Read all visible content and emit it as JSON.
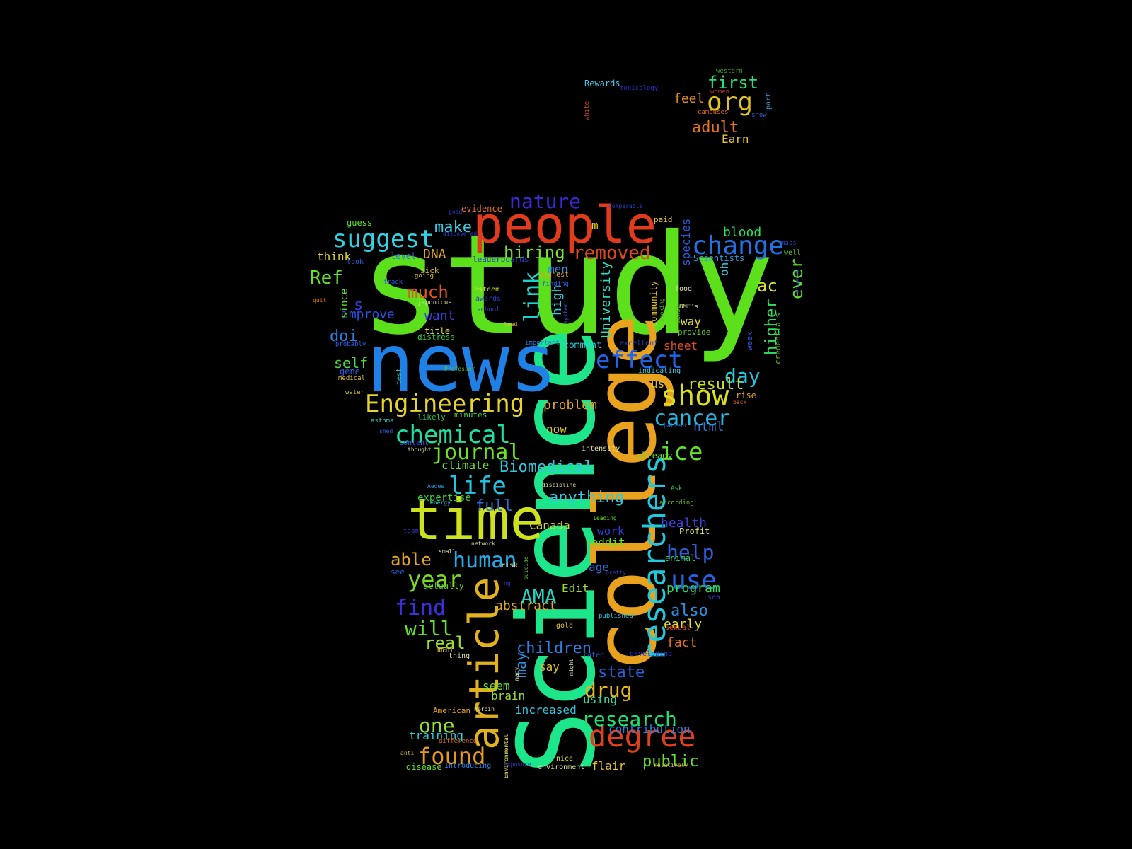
{
  "words": [
    {
      "text": "study",
      "color": "#5de01c",
      "rotated": false
    },
    {
      "text": "Science",
      "color": "#1de58a",
      "rotated": true
    },
    {
      "text": "college",
      "color": "#e8a21e",
      "rotated": true
    },
    {
      "text": "news",
      "color": "#1f80e6",
      "rotated": false
    },
    {
      "text": "people",
      "color": "#e23a1d",
      "rotated": false
    },
    {
      "text": "time",
      "color": "#cde11f",
      "rotated": false
    },
    {
      "text": "article",
      "color": "#e2b21e",
      "rotated": true
    },
    {
      "text": "researchers",
      "color": "#1fc9dd",
      "rotated": true
    },
    {
      "text": "degree",
      "color": "#e2401d",
      "rotated": false
    },
    {
      "text": "Engineering",
      "color": "#e8d32b",
      "rotated": false
    },
    {
      "text": "suggest",
      "color": "#30d2e4",
      "rotated": false
    },
    {
      "text": "change",
      "color": "#1f73e6",
      "rotated": false
    },
    {
      "text": "show",
      "color": "#d9e01e",
      "rotated": false
    },
    {
      "text": "effect",
      "color": "#2066e6",
      "rotated": false
    },
    {
      "text": "chemical",
      "color": "#1fe0a2",
      "rotated": false
    },
    {
      "text": "journal",
      "color": "#6ee21e",
      "rotated": false
    },
    {
      "text": "life",
      "color": "#22c5e4",
      "rotated": false
    },
    {
      "text": "found",
      "color": "#e8981e",
      "rotated": false
    },
    {
      "text": "research",
      "color": "#1fe070",
      "rotated": false
    },
    {
      "text": "year",
      "color": "#7ad922",
      "rotated": false
    },
    {
      "text": "human",
      "color": "#28a9e8",
      "rotated": false
    },
    {
      "text": "use",
      "color": "#2563e6",
      "rotated": false
    },
    {
      "text": "cancer",
      "color": "#22b8e0",
      "rotated": false
    },
    {
      "text": "nature",
      "color": "#3a28d9",
      "rotated": false
    },
    {
      "text": "org",
      "color": "#e2c21e",
      "rotated": false
    },
    {
      "text": "first",
      "color": "#22e07a",
      "rotated": false
    },
    {
      "text": "adult",
      "color": "#e8741e",
      "rotated": false
    },
    {
      "text": "feel",
      "color": "#e0882a",
      "rotated": false
    },
    {
      "text": "Earn",
      "color": "#e6c43a",
      "rotated": false
    },
    {
      "text": "Rewards",
      "color": "#48c8e8",
      "rotated": false
    },
    {
      "text": "toxicology",
      "color": "#2a2cd0",
      "rotated": false
    },
    {
      "text": "western",
      "color": "#3aa82a",
      "rotated": false
    },
    {
      "text": "women",
      "color": "#c82a2a",
      "rotated": false
    },
    {
      "text": "campuses",
      "color": "#e86a2a",
      "rotated": false
    },
    {
      "text": "part",
      "color": "#3a90d0",
      "rotated": true
    },
    {
      "text": "snow",
      "color": "#2a6ad0",
      "rotated": false
    },
    {
      "text": "white",
      "color": "#d0402a",
      "rotated": true
    },
    {
      "text": "removed",
      "color": "#e2481d",
      "rotated": false
    },
    {
      "text": "hiring",
      "color": "#7ce030",
      "rotated": false
    },
    {
      "text": "make",
      "color": "#40c8e0",
      "rotated": false
    },
    {
      "text": "DNA",
      "color": "#e8a81e",
      "rotated": false
    },
    {
      "text": "Ref",
      "color": "#62e02a",
      "rotated": false
    },
    {
      "text": "much",
      "color": "#e2561d",
      "rotated": false
    },
    {
      "text": "link",
      "color": "#1fd0c8",
      "rotated": true
    },
    {
      "text": "doi",
      "color": "#2a80e6",
      "rotated": false
    },
    {
      "text": "want",
      "color": "#3a40e0",
      "rotated": false
    },
    {
      "text": "improve",
      "color": "#2a50e0",
      "rotated": false
    },
    {
      "text": "self",
      "color": "#50d840",
      "rotated": false
    },
    {
      "text": "blood",
      "color": "#2ae060",
      "rotated": false
    },
    {
      "text": "day",
      "color": "#22c8e0",
      "rotated": false
    },
    {
      "text": "result",
      "color": "#c8e022",
      "rotated": false
    },
    {
      "text": "ice",
      "color": "#62e02a",
      "rotated": false
    },
    {
      "text": "html",
      "color": "#2a80e0",
      "rotated": false
    },
    {
      "text": "higher",
      "color": "#2ae060",
      "rotated": true
    },
    {
      "text": "ever",
      "color": "#62e02a",
      "rotated": true
    },
    {
      "text": "ac",
      "color": "#d8e030",
      "rotated": false
    },
    {
      "text": "University",
      "color": "#2ae0c0",
      "rotated": true
    },
    {
      "text": "high",
      "color": "#2ad0e0",
      "rotated": true
    },
    {
      "text": "species",
      "color": "#2a60e0",
      "rotated": true
    },
    {
      "text": "Biomedical",
      "color": "#30c8e0",
      "rotated": false
    },
    {
      "text": "anything",
      "color": "#30c8e0",
      "rotated": false
    },
    {
      "text": "full",
      "color": "#2a70e0",
      "rotated": false
    },
    {
      "text": "AMA",
      "color": "#2ad0c0",
      "rotated": false
    },
    {
      "text": "find",
      "color": "#3a30e0",
      "rotated": false
    },
    {
      "text": "will",
      "color": "#62e02a",
      "rotated": false
    },
    {
      "text": "real",
      "color": "#9ae030",
      "rotated": false
    },
    {
      "text": "able",
      "color": "#e8a81e",
      "rotated": false
    },
    {
      "text": "children",
      "color": "#2a80e6",
      "rotated": false
    },
    {
      "text": "state",
      "color": "#2a60e0",
      "rotated": false
    },
    {
      "text": "drug",
      "color": "#e8b81e",
      "rotated": false
    },
    {
      "text": "help",
      "color": "#2a60e0",
      "rotated": false
    },
    {
      "text": "health",
      "color": "#3a40e0",
      "rotated": false
    },
    {
      "text": "program",
      "color": "#2ae060",
      "rotated": false
    },
    {
      "text": "also",
      "color": "#2a90e0",
      "rotated": false
    },
    {
      "text": "early",
      "color": "#e0e030",
      "rotated": false
    },
    {
      "text": "fact",
      "color": "#e8701e",
      "rotated": false
    },
    {
      "text": "one",
      "color": "#9ae030",
      "rotated": false
    },
    {
      "text": "public",
      "color": "#62e02a",
      "rotated": false
    },
    {
      "text": "contribution",
      "color": "#2a80e0",
      "rotated": false
    },
    {
      "text": "problem",
      "color": "#e0a82a",
      "rotated": false
    },
    {
      "text": "now",
      "color": "#d8c030",
      "rotated": false
    },
    {
      "text": "climate",
      "color": "#62e02a",
      "rotated": false
    },
    {
      "text": "Canada",
      "color": "#d8d830",
      "rotated": false
    },
    {
      "text": "reddit",
      "color": "#62e02a",
      "rotated": false
    },
    {
      "text": "work",
      "color": "#2a40e0",
      "rotated": false
    },
    {
      "text": "age",
      "color": "#2a70e0",
      "rotated": false
    },
    {
      "text": "Edit",
      "color": "#9ae030",
      "rotated": false
    },
    {
      "text": "abstract",
      "color": "#e0a82a",
      "rotated": false
    },
    {
      "text": "may",
      "color": "#2a90e0",
      "rotated": true
    },
    {
      "text": "seem",
      "color": "#62e02a",
      "rotated": false
    },
    {
      "text": "brain",
      "color": "#9ae030",
      "rotated": false
    },
    {
      "text": "say",
      "color": "#e0c030",
      "rotated": false
    },
    {
      "text": "using",
      "color": "#2ae0a0",
      "rotated": false
    },
    {
      "text": "increased",
      "color": "#30c8e0",
      "rotated": false
    },
    {
      "text": "training",
      "color": "#2ad0e0",
      "rotated": false
    },
    {
      "text": "flair",
      "color": "#e0c030",
      "rotated": false
    },
    {
      "text": "disease",
      "color": "#62e02a",
      "rotated": false
    },
    {
      "text": "expertise",
      "color": "#30d040",
      "rotated": false
    },
    {
      "text": "think",
      "color": "#e0d030",
      "rotated": false
    },
    {
      "text": "guess",
      "color": "#62e02a",
      "rotated": false
    },
    {
      "text": "level",
      "color": "#2a70e0",
      "rotated": false
    },
    {
      "text": "look",
      "color": "#2a60e0",
      "rotated": false
    },
    {
      "text": "sick",
      "color": "#e0c030",
      "rotated": false
    },
    {
      "text": "going",
      "color": "#e0c030",
      "rotated": false
    },
    {
      "text": "track",
      "color": "#2a60e0",
      "rotated": false
    },
    {
      "text": "since",
      "color": "#62e02a",
      "rotated": true
    },
    {
      "text": "s",
      "color": "#3a40e0",
      "rotated": false
    },
    {
      "text": "men",
      "color": "#2a90e0",
      "rotated": false
    },
    {
      "text": "highest",
      "color": "#e0a02a",
      "rotated": false
    },
    {
      "text": "finding",
      "color": "#2a60e0",
      "rotated": false
    },
    {
      "text": "esteem",
      "color": "#d8e030",
      "rotated": false
    },
    {
      "text": "awards",
      "color": "#2a40c8",
      "rotated": false
    },
    {
      "text": "japonicus",
      "color": "#e0e0a0",
      "rotated": false
    },
    {
      "text": "school",
      "color": "#2a40c8",
      "rotated": false
    },
    {
      "text": "lead",
      "color": "#e0c030",
      "rotated": false
    },
    {
      "text": "title",
      "color": "#e0e030",
      "rotated": false
    },
    {
      "text": "distress",
      "color": "#30d040",
      "rotated": false
    },
    {
      "text": "probably",
      "color": "#2a60e0",
      "rotated": false
    },
    {
      "text": "gene",
      "color": "#2a60e0",
      "rotated": false
    },
    {
      "text": "medical",
      "color": "#e0c030",
      "rotated": false
    },
    {
      "text": "test",
      "color": "#30c8c0",
      "rotated": true
    },
    {
      "text": "water",
      "color": "#e0c030",
      "rotated": false
    },
    {
      "text": "likely",
      "color": "#30c050",
      "rotated": false
    },
    {
      "text": "minutes",
      "color": "#50d840",
      "rotated": false
    },
    {
      "text": "asthma",
      "color": "#30c8c0",
      "rotated": false
    },
    {
      "text": "shed",
      "color": "#2a60e0",
      "rotated": false
    },
    {
      "text": "content",
      "color": "#2a60e0",
      "rotated": false
    },
    {
      "text": "thought",
      "color": "#e0e0a0",
      "rotated": false
    },
    {
      "text": "Professor",
      "color": "#62c02a",
      "rotated": false
    },
    {
      "text": "important",
      "color": "#2a80e0",
      "rotated": false
    },
    {
      "text": "comment",
      "color": "#30d0e0",
      "rotated": false
    },
    {
      "text": "excellent",
      "color": "#2a40c8",
      "rotated": false
    },
    {
      "text": "sheet",
      "color": "#e0501e",
      "rotated": false
    },
    {
      "text": "indicating",
      "color": "#30c8e0",
      "rotated": false
    },
    {
      "text": "us",
      "color": "#e0c030",
      "rotated": false
    },
    {
      "text": "way",
      "color": "#e0e030",
      "rotated": false
    },
    {
      "text": "provide",
      "color": "#62c02a",
      "rotated": false
    },
    {
      "text": "BME's",
      "color": "#e0e0a0",
      "rotated": false
    },
    {
      "text": "food",
      "color": "#e0e0a0",
      "rotated": false
    },
    {
      "text": "sense",
      "color": "#62c02a",
      "rotated": true
    },
    {
      "text": "smoking",
      "color": "#62c02a",
      "rotated": true
    },
    {
      "text": "community",
      "color": "#e0c030",
      "rotated": true
    },
    {
      "text": "system",
      "color": "#2a60e0",
      "rotated": true
    },
    {
      "text": "oh",
      "color": "#2ad0e0",
      "rotated": true
    },
    {
      "text": "week",
      "color": "#2a60e0",
      "rotated": true
    },
    {
      "text": "credentials",
      "color": "#62c02a",
      "rotated": true
    },
    {
      "text": "toward",
      "color": "#2a40c8",
      "rotated": true
    },
    {
      "text": "well",
      "color": "#62c02a",
      "rotated": false
    },
    {
      "text": "mass",
      "color": "#2a40c8",
      "rotated": false
    },
    {
      "text": "Scientists",
      "color": "#30a0e0",
      "rotated": false
    },
    {
      "text": "m",
      "color": "#e0d030",
      "rotated": false
    },
    {
      "text": "paid",
      "color": "#e0c030",
      "rotated": false
    },
    {
      "text": "comparable",
      "color": "#2a40c8",
      "rotated": false
    },
    {
      "text": "good",
      "color": "#2a40c8",
      "rotated": false
    },
    {
      "text": "evidence",
      "color": "#e0701e",
      "rotated": false
    },
    {
      "text": "discovered",
      "color": "#2a40c8",
      "rotated": false
    },
    {
      "text": "leaderboards",
      "color": "#2a40c8",
      "rotated": false
    },
    {
      "text": "quit",
      "color": "#e0701e",
      "rotated": false
    },
    {
      "text": "rise",
      "color": "#e0a030",
      "rotated": false
    },
    {
      "text": "back",
      "color": "#e0701e",
      "rotated": false
    },
    {
      "text": "patient",
      "color": "#2a80e0",
      "rotated": false
    },
    {
      "text": "already",
      "color": "#62e02a",
      "rotated": false
    },
    {
      "text": "intensity",
      "color": "#e0e0a0",
      "rotated": false
    },
    {
      "text": "Ask",
      "color": "#30c050",
      "rotated": false
    },
    {
      "text": "discipline",
      "color": "#e0e0a0",
      "rotated": false
    },
    {
      "text": "according",
      "color": "#62c02a",
      "rotated": false
    },
    {
      "text": "leading",
      "color": "#62e02a",
      "rotated": false
    },
    {
      "text": "Profit",
      "color": "#d8e060",
      "rotated": false
    },
    {
      "text": "animal",
      "color": "#30d050",
      "rotated": false
    },
    {
      "text": "pretty",
      "color": "#2a40c8",
      "rotated": false
    },
    {
      "text": "sea",
      "color": "#2a40c8",
      "rotated": false
    },
    {
      "text": "published",
      "color": "#30c8e0",
      "rotated": false
    },
    {
      "text": "sexual",
      "color": "#e0401e",
      "rotated": false
    },
    {
      "text": "gold",
      "color": "#e0c030",
      "rotated": false
    },
    {
      "text": "developing",
      "color": "#2a40c8",
      "rotated": false
    },
    {
      "text": "rated",
      "color": "#2a60e0",
      "rotated": false
    },
    {
      "text": "might",
      "color": "#e0e0a0",
      "rotated": true
    },
    {
      "text": "suicide",
      "color": "#62c02a",
      "rotated": true
    },
    {
      "text": "risk",
      "color": "#e0e0a0",
      "rotated": false
    },
    {
      "text": "ng",
      "color": "#2a40c8",
      "rotated": false
    },
    {
      "text": "network",
      "color": "#e0e0a0",
      "rotated": false
    },
    {
      "text": "small",
      "color": "#e0e0a0",
      "rotated": false
    },
    {
      "text": "team",
      "color": "#2a40c8",
      "rotated": false
    },
    {
      "text": "see",
      "color": "#2a60e0",
      "rotated": false
    },
    {
      "text": "actually",
      "color": "#62c02a",
      "rotated": false
    },
    {
      "text": "energy",
      "color": "#30c8e0",
      "rotated": false
    },
    {
      "text": "Aedes",
      "color": "#30a0e0",
      "rotated": false
    },
    {
      "text": "man",
      "color": "#e0c030",
      "rotated": false
    },
    {
      "text": "thing",
      "color": "#e0e0a0",
      "rotated": false
    },
    {
      "text": "many",
      "color": "#e0e0a0",
      "rotated": true
    },
    {
      "text": "American",
      "color": "#e0a02a",
      "rotated": false
    },
    {
      "text": "heroin",
      "color": "#e0e0a0",
      "rotated": false
    },
    {
      "text": "Environmental",
      "color": "#e0e060",
      "rotated": true
    },
    {
      "text": "difference",
      "color": "#e0701e",
      "rotated": false
    },
    {
      "text": "anti",
      "color": "#e0c030",
      "rotated": false
    },
    {
      "text": "Introducing",
      "color": "#2a80e0",
      "rotated": false
    },
    {
      "text": "exposure",
      "color": "#2a40c8",
      "rotated": false
    },
    {
      "text": "nice",
      "color": "#e0e030",
      "rotated": false
    },
    {
      "text": "environment",
      "color": "#e0e0a0",
      "rotated": false
    },
    {
      "text": "relatively",
      "color": "#e0c030",
      "rotated": false
    }
  ]
}
